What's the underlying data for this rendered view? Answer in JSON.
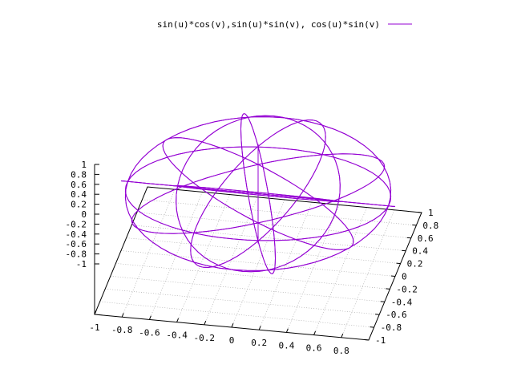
{
  "chart_data": {
    "type": "surface3d",
    "legend": {
      "label": "sin(u)*cos(v),sin(u)*sin(v), cos(u)*sin(v)",
      "placement": "top-right"
    },
    "series": [
      {
        "name": "sin(u)*cos(v),sin(u)*sin(v), cos(u)*sin(v)",
        "expression": {
          "x": "sin(u)*cos(v)",
          "y": "sin(u)*sin(v)",
          "z": "cos(u)*sin(v)"
        },
        "color": "#9400d3"
      }
    ],
    "xrange": [
      -1,
      1
    ],
    "yrange": [
      -1,
      1
    ],
    "zrange": [
      -1,
      1
    ],
    "grid": true,
    "x_ticks": [
      "-1",
      "-0.8",
      "-0.6",
      "-0.4",
      "-0.2",
      "0",
      "0.2",
      "0.4",
      "0.6",
      "0.8"
    ],
    "y_ticks": [
      "-1",
      "-0.8",
      "-0.6",
      "-0.4",
      "-0.2",
      "0",
      "0.2",
      "0.4",
      "0.6",
      "0.8",
      "1"
    ],
    "z_ticks": [
      "1",
      "0.8",
      "0.6",
      "0.4",
      "0.2",
      "0",
      "-0.2",
      "-0.4",
      "-0.6",
      "-0.8",
      "-1"
    ]
  },
  "colors": {
    "line": "#9400d3",
    "axis": "#000000",
    "grid": "#a0a0a0"
  }
}
